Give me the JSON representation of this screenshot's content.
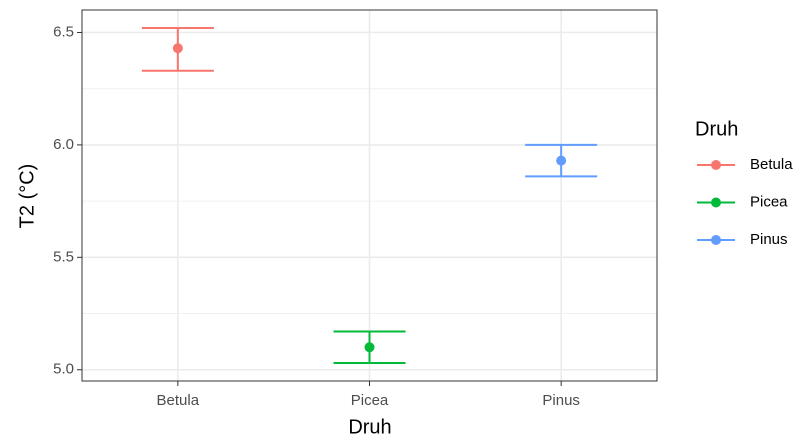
{
  "chart_data": {
    "type": "errorbar",
    "x_label": "Druh",
    "y_label": "T2 (°C)",
    "categories": [
      "Betula",
      "Picea",
      "Pinus"
    ],
    "legend_title": "Druh",
    "series": [
      {
        "name": "Betula",
        "color": "#f8766d",
        "values": [
          6.43,
          null,
          null
        ],
        "lower": [
          6.33,
          null,
          null
        ],
        "upper": [
          6.52,
          null,
          null
        ]
      },
      {
        "name": "Picea",
        "color": "#00ba38",
        "values": [
          null,
          5.1,
          null
        ],
        "lower": [
          null,
          5.03,
          null
        ],
        "upper": [
          null,
          5.17,
          null
        ]
      },
      {
        "name": "Pinus",
        "color": "#619cff",
        "values": [
          null,
          null,
          5.93
        ],
        "lower": [
          null,
          null,
          5.86
        ],
        "upper": [
          null,
          null,
          6.0
        ]
      }
    ],
    "ylim": [
      4.95,
      6.6
    ],
    "yticks": [
      {
        "value": 5,
        "label": "5.0"
      },
      5.5,
      {
        "value": 6,
        "label": "6.0"
      },
      6.5
    ],
    "y_minor_ticks": [
      5.25,
      5.75,
      6.25
    ],
    "grid": true
  }
}
